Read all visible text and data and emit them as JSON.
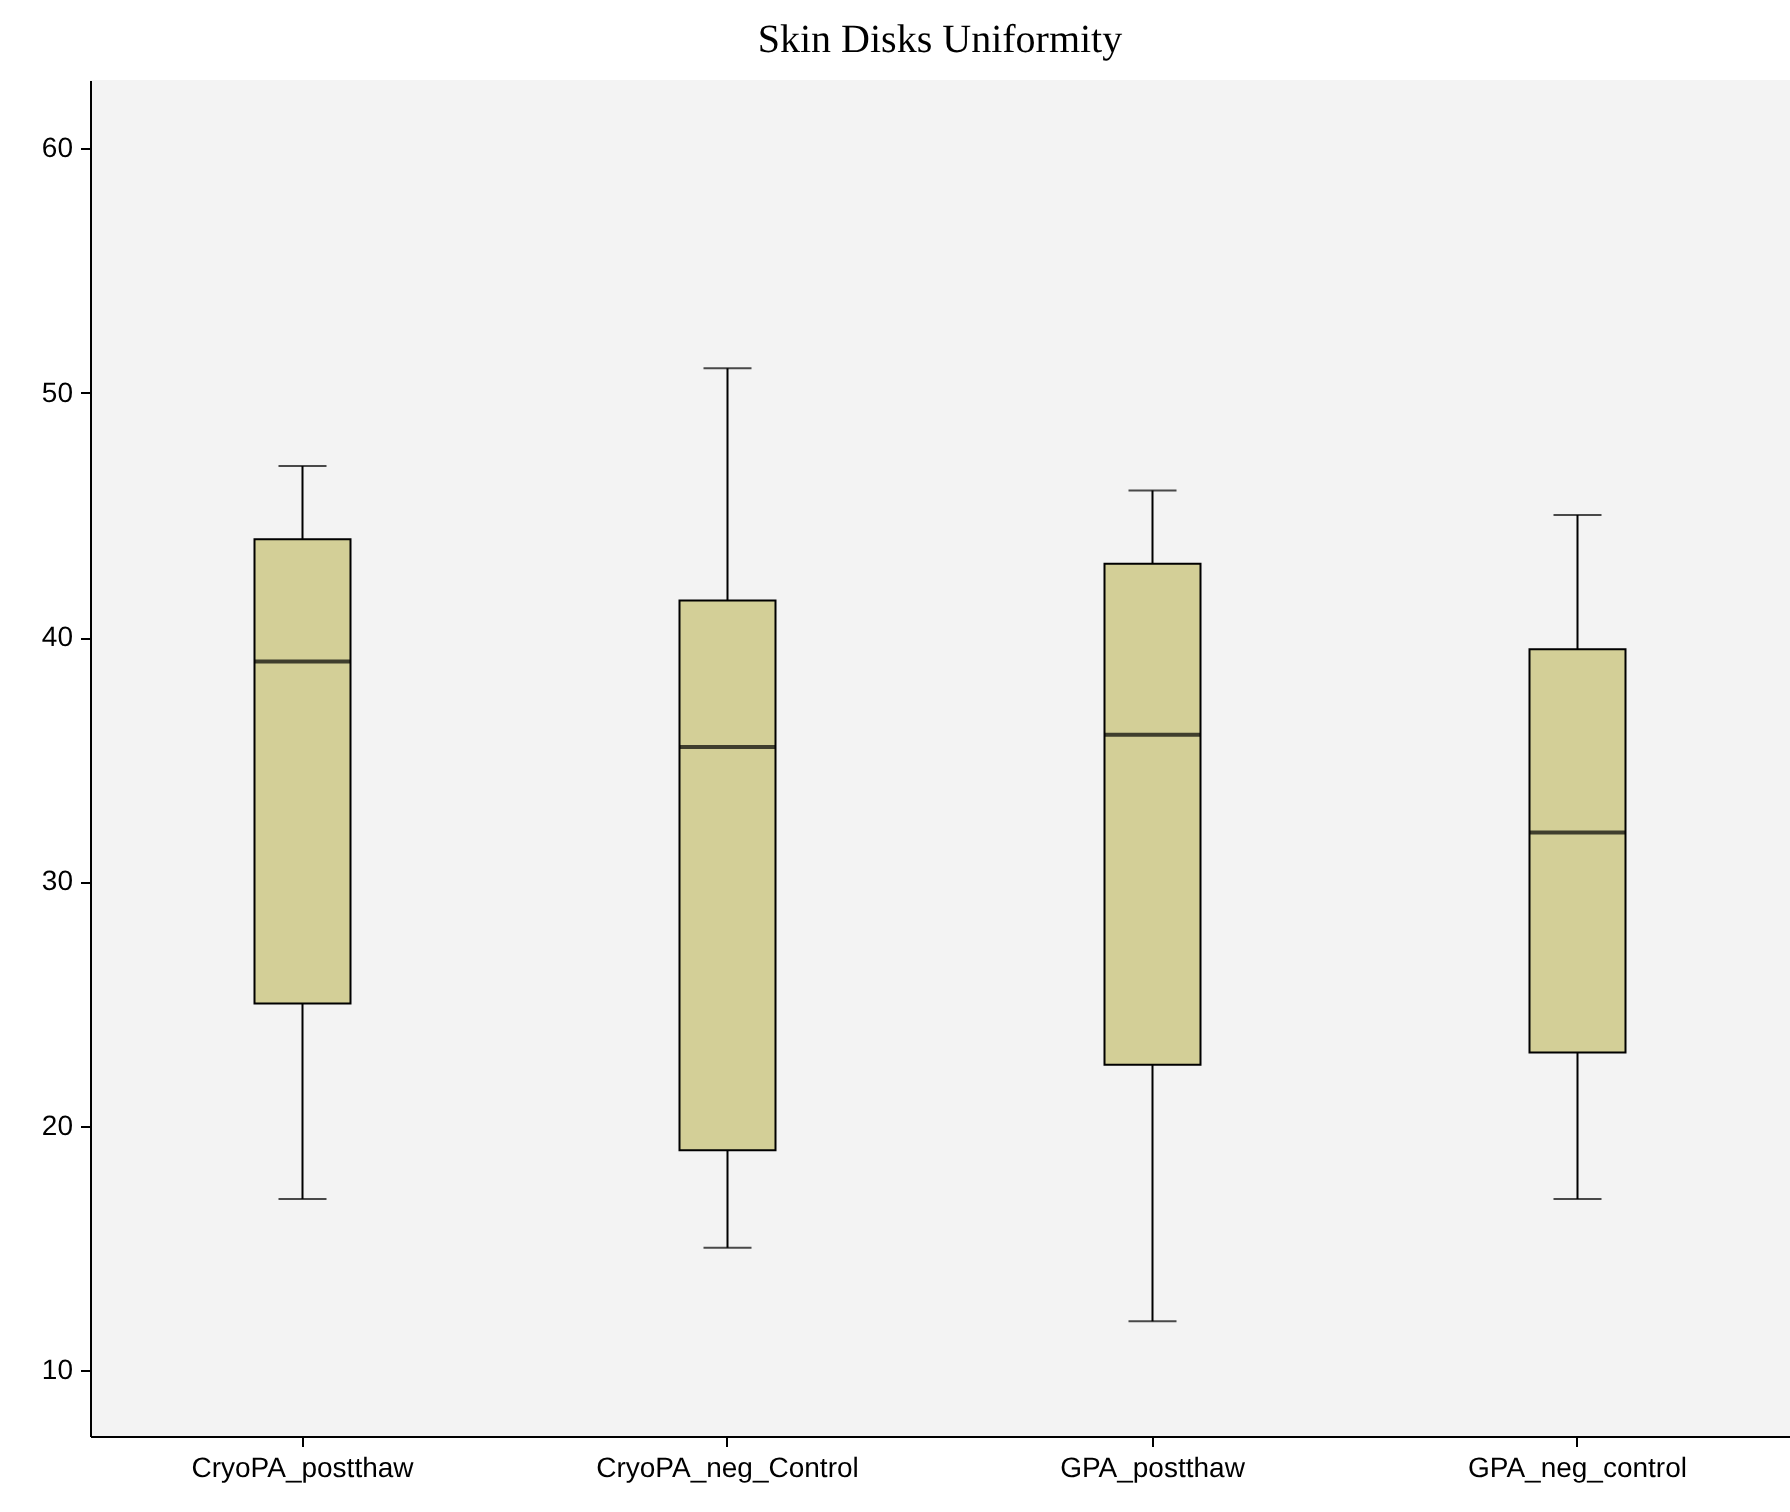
{
  "chart_data": {
    "type": "box",
    "title": "Skin Disks Uniformity",
    "categories": [
      "CryoPA_postthaw",
      "CryoPA_neg_Control",
      "GPA_postthaw",
      "GPA_neg_control"
    ],
    "series": [
      {
        "color": "#d3cf97",
        "boxes": [
          {
            "low": 17,
            "q1": 25,
            "median": 39,
            "q3": 44,
            "high": 47
          },
          {
            "low": 15,
            "q1": 19,
            "median": 35.5,
            "q3": 41.5,
            "high": 51
          },
          {
            "low": 12,
            "q1": 22.5,
            "median": 36,
            "q3": 43,
            "high": 46
          },
          {
            "low": 17,
            "q1": 23,
            "median": 32,
            "q3": 39.5,
            "high": 45
          }
        ]
      }
    ],
    "ylim": [
      7.3,
      62.8
    ],
    "yticks": [
      10,
      20,
      30,
      40,
      50,
      60
    ]
  }
}
